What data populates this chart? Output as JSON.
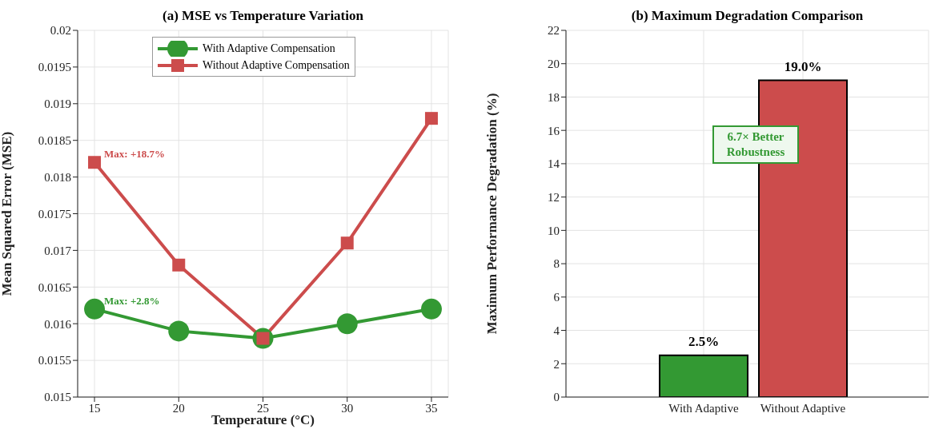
{
  "chart_data": [
    {
      "type": "line",
      "title": "(a) MSE vs Temperature Variation",
      "xlabel": "Temperature (°C)",
      "ylabel": "Mean Squared Error (MSE)",
      "x": [
        15,
        20,
        25,
        30,
        35
      ],
      "xlim": [
        14,
        36
      ],
      "xticks": [
        15,
        20,
        25,
        30,
        35
      ],
      "ylim": [
        0.015,
        0.02
      ],
      "yticks": [
        0.015,
        0.0155,
        0.016,
        0.0165,
        0.017,
        0.0175,
        0.018,
        0.0185,
        0.019,
        0.0195,
        0.02
      ],
      "grid": true,
      "legend": "top",
      "line_style": "solid",
      "series": [
        {
          "name": "With Adaptive Compensation",
          "color": "#339933",
          "marker": "circle",
          "values": [
            0.0162,
            0.0159,
            0.0158,
            0.016,
            0.0162
          ]
        },
        {
          "name": "Without Adaptive Compensation",
          "color": "#cc4c4c",
          "marker": "square",
          "values": [
            0.0182,
            0.0168,
            0.0158,
            0.0171,
            0.0188
          ]
        }
      ],
      "annotations": [
        {
          "text": "Max: +18.7%",
          "x": 15,
          "y": 0.0182
        },
        {
          "text": "Max: +2.8%",
          "x": 15,
          "y": 0.0162
        }
      ]
    },
    {
      "type": "bar",
      "title": "(b) Maximum Degradation Comparison",
      "ylabel": "Maximum Performance Degradation (%)",
      "categories": [
        "With Adaptive",
        "Without Adaptive"
      ],
      "values": [
        2.5,
        19.0
      ],
      "colors": [
        "#339933",
        "#cc4c4c"
      ],
      "value_labels": [
        "2.5%",
        "19.0%"
      ],
      "ylim": [
        0,
        22
      ],
      "yticks": [
        0,
        2,
        4,
        6,
        8,
        10,
        12,
        14,
        16,
        18,
        20,
        22
      ],
      "grid": true,
      "annotations": [
        "6.7× Better Robustness"
      ]
    }
  ]
}
